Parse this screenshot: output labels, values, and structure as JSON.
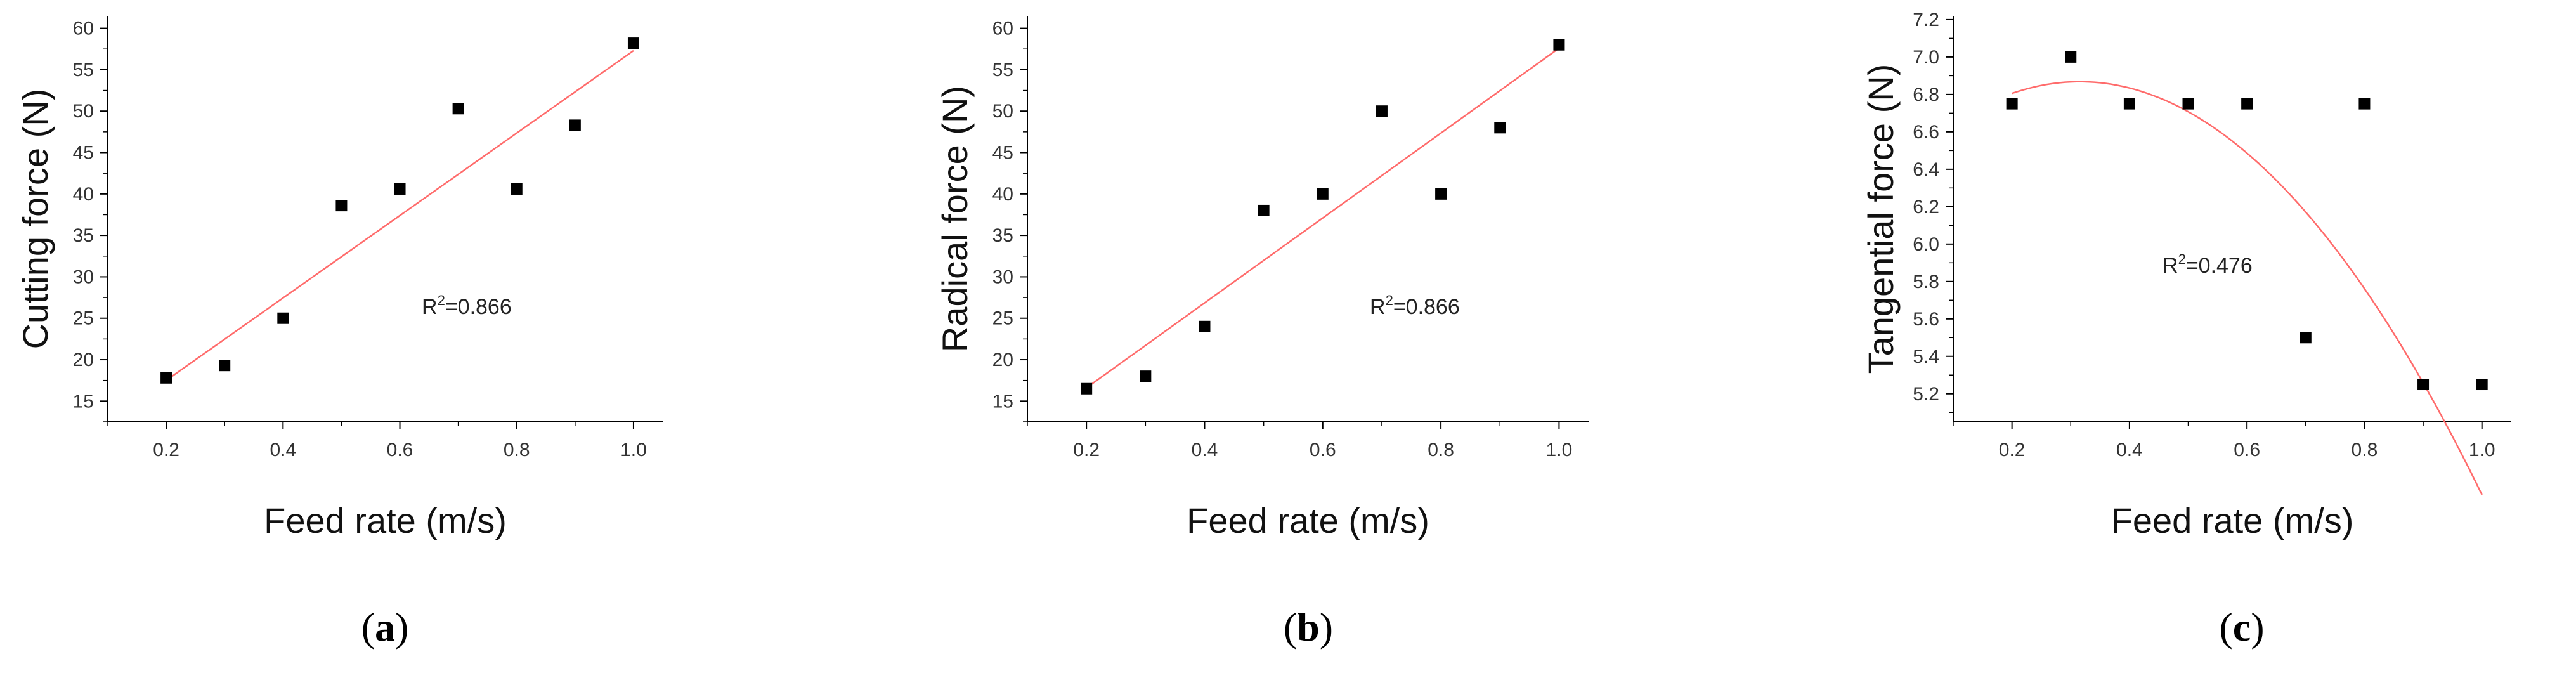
{
  "figure": {
    "background": "#ffffff"
  },
  "panels": [
    {
      "caption": {
        "open": "(",
        "letter": "a",
        "close": ")"
      },
      "r2": {
        "prefix": "R",
        "sup": "2",
        "suffix": "=0.866"
      },
      "fit": "linear"
    },
    {
      "caption": {
        "open": "(",
        "letter": "b",
        "close": ")"
      },
      "r2": {
        "prefix": "R",
        "sup": "2",
        "suffix": "=0.866"
      },
      "fit": "linear"
    },
    {
      "caption": {
        "open": "(",
        "letter": "c",
        "close": ")"
      },
      "r2": {
        "prefix": "R",
        "sup": "2",
        "suffix": "=0.476"
      },
      "fit": "quadratic"
    }
  ],
  "chart_data": [
    {
      "type": "scatter",
      "title": "",
      "xlabel": "Feed rate (m/s)",
      "ylabel": "Cutting force (N)",
      "xlim": [
        0.1,
        1.05
      ],
      "ylim": [
        12.5,
        61.5
      ],
      "xticks": [
        "0.2",
        "0.4",
        "0.6",
        "0.8",
        "1.0"
      ],
      "yticks": [
        "15",
        "20",
        "25",
        "30",
        "35",
        "40",
        "45",
        "50",
        "55",
        "60"
      ],
      "x": [
        0.2,
        0.3,
        0.4,
        0.5,
        0.6,
        0.7,
        0.8,
        0.9,
        1.0
      ],
      "y": [
        17.8,
        19.3,
        25.0,
        38.6,
        40.6,
        50.3,
        40.6,
        48.3,
        58.2
      ],
      "fit_line": {
        "x": [
          0.2,
          1.0
        ],
        "y": [
          17.5,
          57.3
        ],
        "color": "#ff6b6b"
      },
      "marker_color": "#000000",
      "annotation": "R2=0.866"
    },
    {
      "type": "scatter",
      "title": "",
      "xlabel": "Feed rate (m/s)",
      "ylabel": "Radical force (N)",
      "xlim": [
        0.1,
        1.05
      ],
      "ylim": [
        12.5,
        61.5
      ],
      "xticks": [
        "0.2",
        "0.4",
        "0.6",
        "0.8",
        "1.0"
      ],
      "yticks": [
        "15",
        "20",
        "25",
        "30",
        "35",
        "40",
        "45",
        "50",
        "55",
        "60"
      ],
      "x": [
        0.2,
        0.3,
        0.4,
        0.5,
        0.6,
        0.7,
        0.8,
        0.9,
        1.0
      ],
      "y": [
        16.5,
        18.0,
        24.0,
        38.0,
        40.0,
        50.0,
        40.0,
        48.0,
        58.0
      ],
      "fit_line": {
        "x": [
          0.2,
          1.0
        ],
        "y": [
          16.6,
          57.6
        ],
        "color": "#ff6b6b"
      },
      "marker_color": "#000000",
      "annotation": "R2=0.866"
    },
    {
      "type": "scatter",
      "title": "",
      "xlabel": "Feed rate (m/s)",
      "ylabel": "Tangential force (N)",
      "xlim": [
        0.1,
        1.05
      ],
      "ylim": [
        5.05,
        7.22
      ],
      "xticks": [
        "0.2",
        "0.4",
        "0.6",
        "0.8",
        "1.0"
      ],
      "yticks": [
        "5.2",
        "5.4",
        "5.6",
        "5.8",
        "6.0",
        "6.2",
        "6.4",
        "6.6",
        "6.8",
        "7.0",
        "7.2"
      ],
      "x": [
        0.2,
        0.3,
        0.4,
        0.5,
        0.6,
        0.7,
        0.8,
        0.9,
        1.0
      ],
      "y": [
        6.75,
        7.0,
        6.75,
        6.75,
        6.75,
        5.5,
        6.75,
        5.25,
        5.25
      ],
      "fit_curve": {
        "type": "quadratic",
        "coefficients": [
          6.4,
          2.97,
          -4.71
        ],
        "x_range": [
          0.2,
          1.0
        ],
        "color": "#ff6b6b"
      },
      "marker_color": "#000000",
      "annotation": "R2=0.476"
    }
  ]
}
